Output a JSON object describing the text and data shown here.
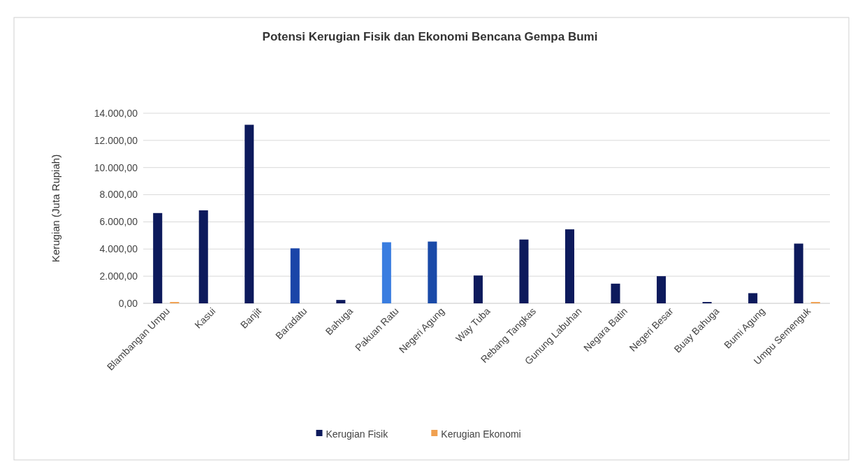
{
  "chart_data": {
    "type": "bar",
    "title": "Potensi Kerugian Fisik dan Ekonomi Bencana Gempa Bumi",
    "ylabel": "Kerugian (Juta Rupiah)",
    "categories": [
      "Blambangan Umpu",
      "Kasui",
      "Banjit",
      "Baradatu",
      "Bahuga",
      "Pakuan Ratu",
      "Negeri Agung",
      "Way Tuba",
      "Rebang Tangkas",
      "Gunung Labuhan",
      "Negara Batin",
      "Negeri Besar",
      "Buay Bahuga",
      "Bumi Agung",
      "Umpu Semenguk"
    ],
    "series": [
      {
        "name": "Kerugian Fisik",
        "color": "#0d1a5c",
        "colors": [
          "#0d1a5c",
          "#0d1a5c",
          "#0d1a5c",
          "#1a45a8",
          "#0d1a5c",
          "#3a7de0",
          "#1a4aa8",
          "#0d1a5c",
          "#0d1a5c",
          "#0d1a5c",
          "#0d1a5c",
          "#0d1a5c",
          "#0d1a5c",
          "#0d1a5c",
          "#0d1a5c"
        ],
        "values": [
          6650,
          6850,
          13150,
          4050,
          250,
          4500,
          4550,
          2050,
          4700,
          5450,
          1450,
          2000,
          100,
          750,
          4400
        ]
      },
      {
        "name": "Kerugian Ekonomi",
        "color": "#f0a050",
        "values": [
          100,
          0,
          0,
          0,
          0,
          0,
          0,
          0,
          0,
          0,
          0,
          0,
          0,
          0,
          100
        ]
      }
    ],
    "ylim": [
      0,
      14000
    ],
    "yticks": [
      {
        "value": 0,
        "label": "0,00"
      },
      {
        "value": 2000,
        "label": "2.000,00"
      },
      {
        "value": 4000,
        "label": "4.000,00"
      },
      {
        "value": 6000,
        "label": "6.000,00"
      },
      {
        "value": 8000,
        "label": "8.000,00"
      },
      {
        "value": 10000,
        "label": "10.000,00"
      },
      {
        "value": 12000,
        "label": "12.000,00"
      },
      {
        "value": 14000,
        "label": "14.000,00"
      }
    ],
    "grid": "y",
    "legend": "bottom"
  }
}
